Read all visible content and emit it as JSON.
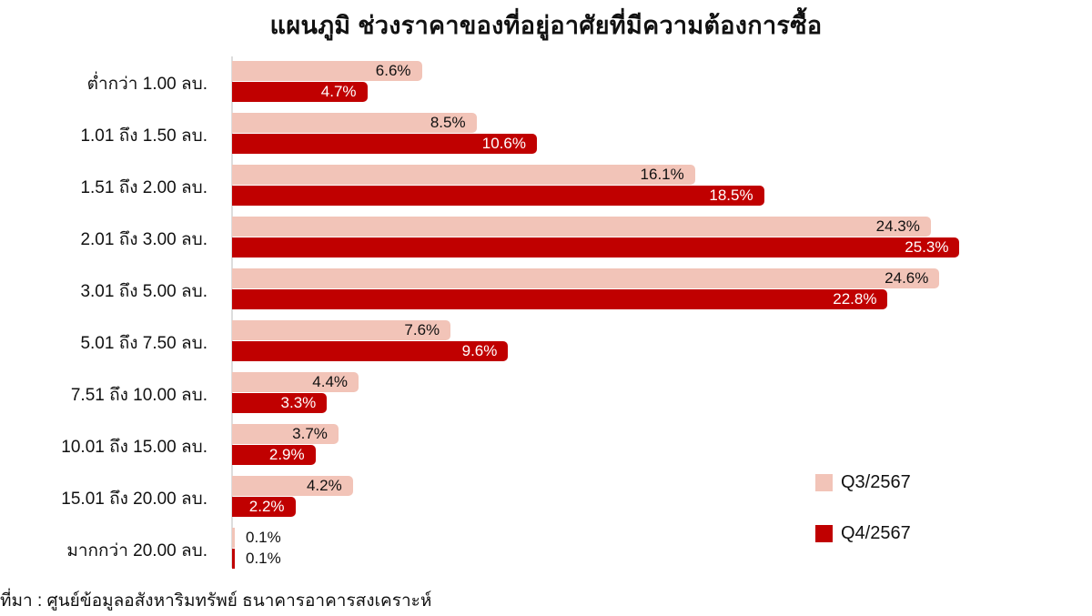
{
  "title": "แผนภูมิ ช่วงราคาของที่อยู่อาศัยที่มีความต้องการซื้อ",
  "source": "ที่มา : ศูนย์ข้อมูลอสังหาริมทรัพย์ ธนาคารอาคารสงเคราะห์",
  "legend": [
    {
      "label": "Q3/2567",
      "color": "#f2c4b8"
    },
    {
      "label": "Q4/2567",
      "color": "#c00000"
    }
  ],
  "rows": [
    {
      "label": "ต่ำกว่า 1.00 ลบ.",
      "q3": "6.6%",
      "q4": "4.7%"
    },
    {
      "label": "1.01 ถึง 1.50 ลบ.",
      "q3": "8.5%",
      "q4": "10.6%"
    },
    {
      "label": "1.51 ถึง 2.00 ลบ.",
      "q3": "16.1%",
      "q4": "18.5%"
    },
    {
      "label": "2.01 ถึง 3.00 ลบ.",
      "q3": "24.3%",
      "q4": "25.3%"
    },
    {
      "label": "3.01 ถึง 5.00 ลบ.",
      "q3": "24.6%",
      "q4": "22.8%"
    },
    {
      "label": "5.01 ถึง 7.50 ลบ.",
      "q3": "7.6%",
      "q4": "9.6%"
    },
    {
      "label": "7.51 ถึง 10.00 ลบ.",
      "q3": "4.4%",
      "q4": "3.3%"
    },
    {
      "label": "10.01 ถึง 15.00 ลบ.",
      "q3": "3.7%",
      "q4": "2.9%"
    },
    {
      "label": "15.01 ถึง 20.00 ลบ.",
      "q3": "4.2%",
      "q4": "2.2%"
    },
    {
      "label": "มากกว่า 20.00 ลบ.",
      "q3": "0.1%",
      "q4": "0.1%"
    }
  ],
  "chart_data": {
    "type": "bar",
    "orientation": "horizontal",
    "title": "แผนภูมิ ช่วงราคาของที่อยู่อาศัยที่มีความต้องการซื้อ",
    "categories": [
      "ต่ำกว่า 1.00 ลบ.",
      "1.01 ถึง 1.50 ลบ.",
      "1.51 ถึง 2.00 ลบ.",
      "2.01 ถึง 3.00 ลบ.",
      "3.01 ถึง 5.00 ลบ.",
      "5.01 ถึง 7.50 ลบ.",
      "7.51 ถึง 10.00 ลบ.",
      "10.01 ถึง 15.00 ลบ.",
      "15.01 ถึง 20.00 ลบ.",
      "มากกว่า 20.00 ลบ."
    ],
    "series": [
      {
        "name": "Q3/2567",
        "color": "#f2c4b8",
        "values": [
          6.6,
          8.5,
          16.1,
          24.3,
          24.6,
          7.6,
          4.4,
          3.7,
          4.2,
          0.1
        ]
      },
      {
        "name": "Q4/2567",
        "color": "#c00000",
        "values": [
          4.7,
          10.6,
          18.5,
          25.3,
          22.8,
          9.6,
          3.3,
          2.9,
          2.2,
          0.1
        ]
      }
    ],
    "unit": "%",
    "xlabel": "",
    "ylabel": "",
    "grid": false,
    "legend_position": "bottom-right",
    "source": "ที่มา : ศูนย์ข้อมูลอสังหาริมทรัพย์ ธนาคารอาคารสงเคราะห์"
  }
}
